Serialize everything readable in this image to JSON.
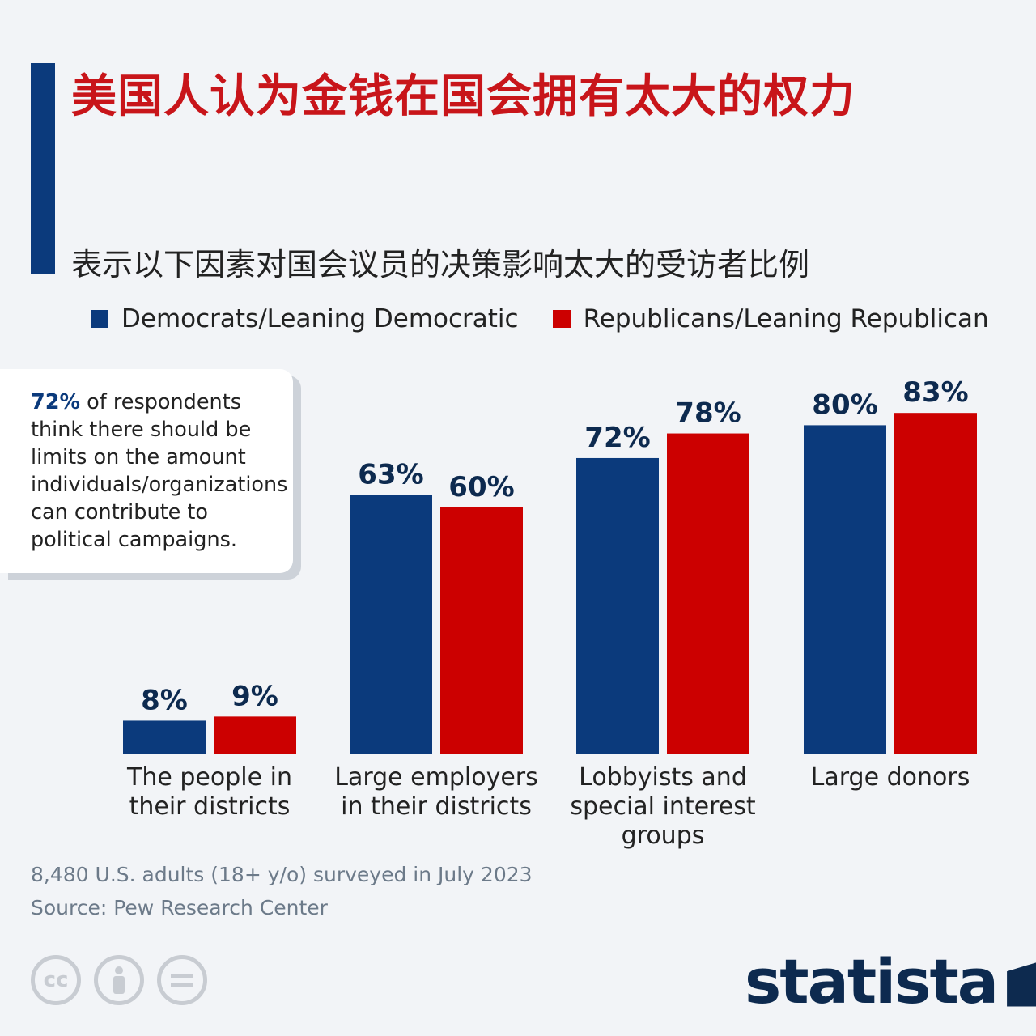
{
  "title": "美国人认为金钱在国会拥有太大的权力",
  "subtitle": "表示以下因素对国会议员的决策影响太大的受访者比例",
  "legend": [
    {
      "label": "Democrats/Leaning Democratic",
      "color": "#0b3a7c"
    },
    {
      "label": "Republicans/Leaning Republican",
      "color": "#cc0000"
    }
  ],
  "callout": {
    "highlight": "72%",
    "text": " of respondents think there should be limits on the amount individuals/organizations can contribute to political campaigns."
  },
  "chart_data": {
    "type": "bar",
    "categories": [
      [
        "The people in",
        "their districts"
      ],
      [
        "Large employers",
        "in their districts"
      ],
      [
        "Lobbyists and",
        "special interest",
        "groups"
      ],
      [
        "Large donors"
      ]
    ],
    "series": [
      {
        "name": "Democrats/Leaning Democratic",
        "values": [
          8,
          63,
          72,
          80
        ],
        "color": "#0b3a7c"
      },
      {
        "name": "Republicans/Leaning Republican",
        "values": [
          9,
          60,
          78,
          83
        ],
        "color": "#cc0000"
      }
    ],
    "value_suffix": "%",
    "ylim": [
      0,
      100
    ],
    "grid": false,
    "legend_position": "top"
  },
  "footnotes": {
    "survey": "8,480 U.S. adults (18+ y/o) surveyed in July 2023",
    "source": "Source: Pew Research Center"
  },
  "brand": {
    "name": "statista",
    "icons": [
      "cc-icon",
      "person-icon",
      "equals-icon"
    ]
  }
}
